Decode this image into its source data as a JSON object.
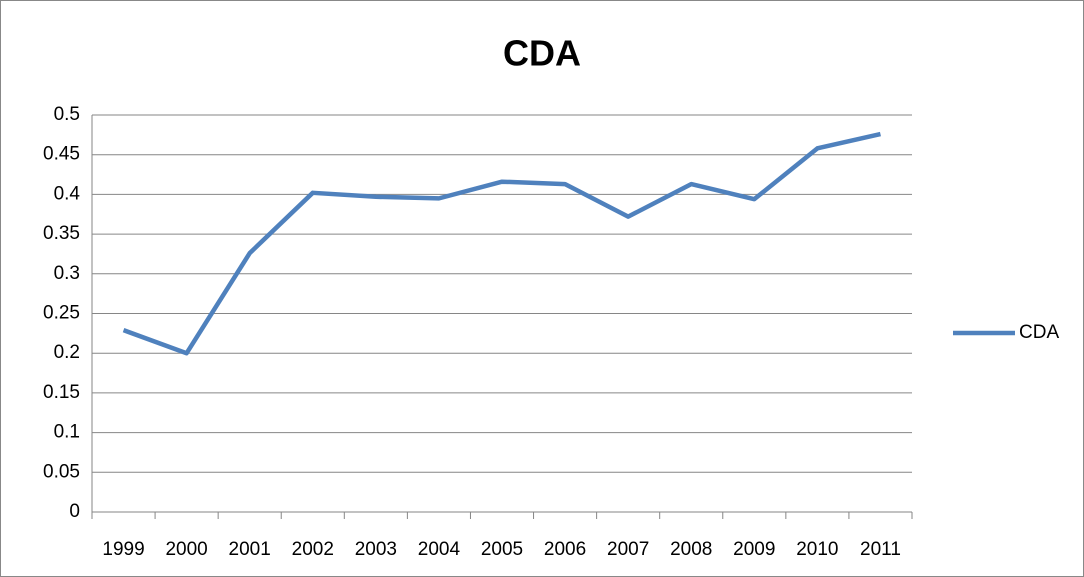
{
  "chart_data": {
    "type": "line",
    "title": "CDA",
    "categories": [
      "1999",
      "2000",
      "2001",
      "2002",
      "2003",
      "2004",
      "2005",
      "2006",
      "2007",
      "2008",
      "2009",
      "2010",
      "2011"
    ],
    "series": [
      {
        "name": "CDA",
        "color": "#4f81bd",
        "values": [
          0.229,
          0.2,
          0.326,
          0.402,
          0.397,
          0.395,
          0.416,
          0.413,
          0.372,
          0.413,
          0.394,
          0.458,
          0.476
        ]
      }
    ],
    "ylim": [
      0,
      0.5
    ],
    "yticks": [
      0,
      0.05,
      0.1,
      0.15,
      0.2,
      0.25,
      0.3,
      0.35,
      0.4,
      0.45,
      0.5
    ],
    "grid": true,
    "legend": "right"
  }
}
